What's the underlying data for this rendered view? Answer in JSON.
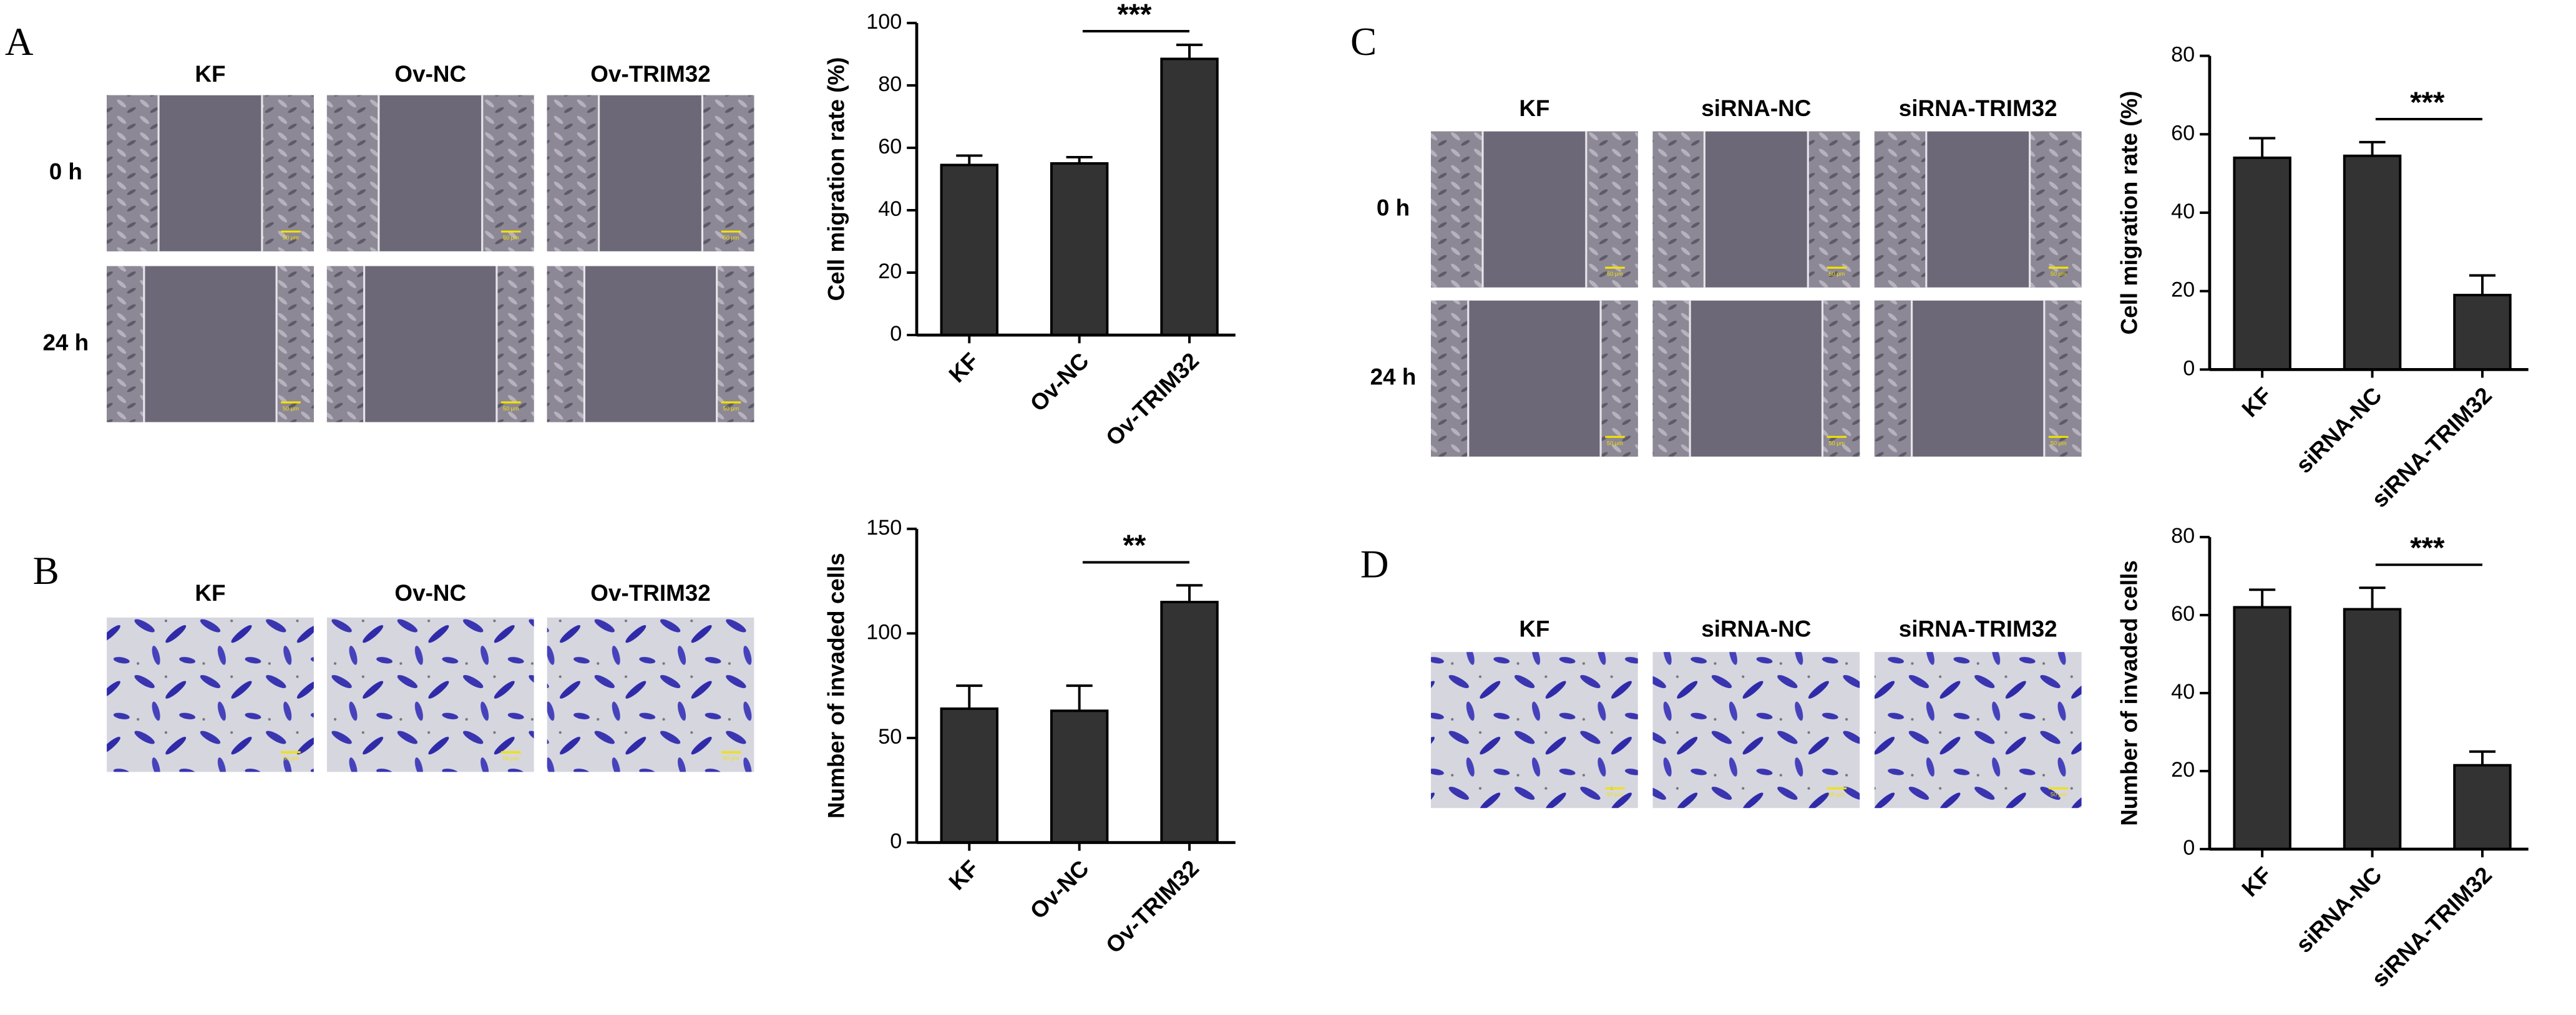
{
  "panels": [
    {
      "label": "A",
      "columns": [
        "KF",
        "Ov-NC",
        "Ov-TRIM32"
      ],
      "rows": [
        "0 h",
        "24 h"
      ],
      "scale_bar": "50 μm"
    },
    {
      "label": "B",
      "columns": [
        "KF",
        "Ov-NC",
        "Ov-TRIM32"
      ],
      "scale_bar": "50 μm"
    },
    {
      "label": "C",
      "columns": [
        "KF",
        "siRNA-NC",
        "siRNA-TRIM32"
      ],
      "rows": [
        "0 h",
        "24 h"
      ],
      "scale_bar": "50 μm"
    },
    {
      "label": "D",
      "columns": [
        "KF",
        "siRNA-NC",
        "siRNA-TRIM32"
      ],
      "scale_bar": "50 μm"
    }
  ],
  "chart_data": [
    {
      "type": "bar",
      "y_label": "Cell migration rate (%)",
      "categories": [
        "KF",
        "Ov-NC",
        "Ov-TRIM32"
      ],
      "values": [
        54.5,
        55,
        88.5
      ],
      "errors": [
        3,
        2,
        4.5
      ],
      "color": "#333333",
      "ylim": [
        0,
        100
      ],
      "yticks": [
        0,
        20,
        40,
        60,
        80,
        100
      ],
      "significance": "***"
    },
    {
      "type": "bar",
      "y_label": "Number of invaded cells",
      "categories": [
        "KF",
        "Ov-NC",
        "Ov-TRIM32"
      ],
      "values": [
        64,
        63,
        115
      ],
      "errors": [
        11,
        12,
        8
      ],
      "color": "#333333",
      "ylim": [
        0,
        150
      ],
      "yticks": [
        0,
        50,
        100,
        150
      ],
      "significance": "**"
    },
    {
      "type": "bar",
      "y_label": "Cell migration rate (%)",
      "categories": [
        "KF",
        "siRNA-NC",
        "siRNA-TRIM32"
      ],
      "values": [
        54,
        54.5,
        19
      ],
      "errors": [
        5,
        3.5,
        5
      ],
      "color": "#333333",
      "ylim": [
        0,
        80
      ],
      "yticks": [
        0,
        20,
        40,
        60,
        80
      ],
      "significance": "***"
    },
    {
      "type": "bar",
      "y_label": "Number of invaded cells",
      "categories": [
        "KF",
        "siRNA-NC",
        "siRNA-TRIM32"
      ],
      "values": [
        62,
        61.5,
        21.5
      ],
      "errors": [
        4.5,
        5.5,
        3.5
      ],
      "color": "#333333",
      "ylim": [
        0,
        80
      ],
      "yticks": [
        0,
        20,
        40,
        60,
        80
      ],
      "significance": "***"
    }
  ]
}
